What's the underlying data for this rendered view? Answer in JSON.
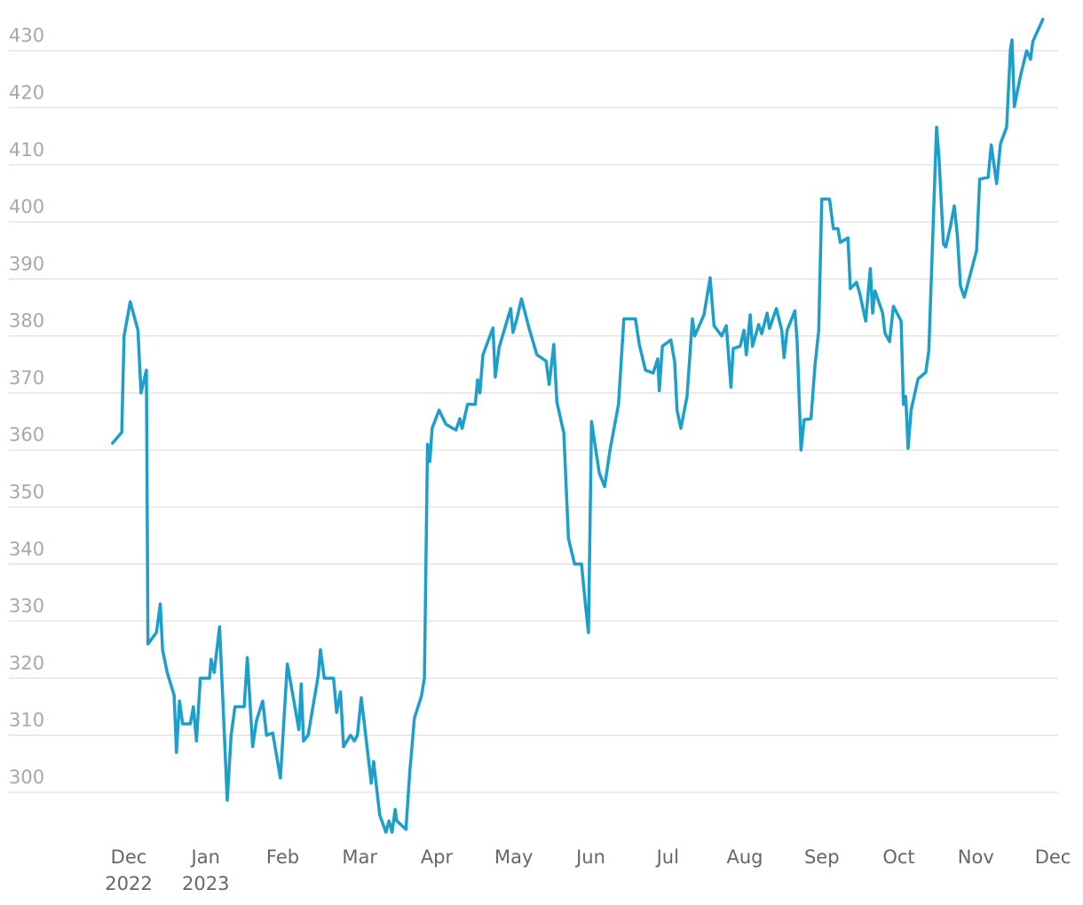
{
  "chart_data": {
    "type": "line",
    "color": "#1ca0cb",
    "grid": true,
    "xlim": [
      -0.5,
      12.1
    ],
    "ylim": [
      292.5,
      436
    ],
    "yticks": [
      300,
      310,
      320,
      330,
      340,
      350,
      360,
      370,
      380,
      390,
      400,
      410,
      420,
      430
    ],
    "xticks": [
      {
        "value": 0,
        "label": "Dec\n2022"
      },
      {
        "value": 1,
        "label": "Jan\n2023"
      },
      {
        "value": 2,
        "label": "Feb"
      },
      {
        "value": 3,
        "label": "Mar"
      },
      {
        "value": 4,
        "label": "Apr"
      },
      {
        "value": 5,
        "label": "May"
      },
      {
        "value": 6,
        "label": "Jun"
      },
      {
        "value": 7,
        "label": "Jul"
      },
      {
        "value": 8,
        "label": "Aug"
      },
      {
        "value": 9,
        "label": "Sep"
      },
      {
        "value": 10,
        "label": "Oct"
      },
      {
        "value": 11,
        "label": "Nov"
      },
      {
        "value": 12,
        "label": "Dec"
      }
    ],
    "x": [
      -0.21,
      -0.09,
      -0.06,
      0.02,
      0.12,
      0.16,
      0.23,
      0.25,
      0.36,
      0.41,
      0.44,
      0.5,
      0.59,
      0.62,
      0.66,
      0.7,
      0.8,
      0.84,
      0.88,
      0.93,
      1.05,
      1.07,
      1.11,
      1.18,
      1.28,
      1.33,
      1.38,
      1.5,
      1.54,
      1.61,
      1.66,
      1.74,
      1.79,
      1.87,
      1.97,
      2.06,
      2.21,
      2.24,
      2.27,
      2.33,
      2.46,
      2.49,
      2.54,
      2.66,
      2.7,
      2.75,
      2.79,
      2.88,
      2.93,
      2.97,
      3.02,
      3.15,
      3.18,
      3.26,
      3.34,
      3.38,
      3.42,
      3.46,
      3.48,
      3.6,
      3.65,
      3.71,
      3.8,
      3.84,
      3.88,
      3.91,
      3.94,
      4.03,
      4.12,
      4.25,
      4.3,
      4.33,
      4.4,
      4.5,
      4.53,
      4.56,
      4.6,
      4.73,
      4.76,
      4.81,
      4.96,
      4.99,
      5.04,
      5.1,
      5.2,
      5.3,
      5.42,
      5.46,
      5.52,
      5.56,
      5.65,
      5.71,
      5.79,
      5.88,
      5.93,
      5.97,
      6.01,
      6.11,
      6.18,
      6.25,
      6.36,
      6.43,
      6.58,
      6.63,
      6.71,
      6.81,
      6.87,
      6.89,
      6.93,
      7.04,
      7.09,
      7.12,
      7.17,
      7.25,
      7.32,
      7.35,
      7.47,
      7.55,
      7.6,
      7.7,
      7.76,
      7.82,
      7.85,
      7.94,
      7.99,
      8.02,
      8.07,
      8.1,
      8.18,
      8.22,
      8.29,
      8.32,
      8.41,
      8.48,
      8.51,
      8.55,
      8.65,
      8.68,
      8.73,
      8.77,
      8.86,
      8.91,
      8.96,
      9.0,
      9.1,
      9.15,
      9.21,
      9.24,
      9.34,
      9.37,
      9.45,
      9.49,
      9.57,
      9.63,
      9.66,
      9.69,
      9.79,
      9.82,
      9.88,
      9.93,
      10.03,
      10.06,
      10.09,
      10.12,
      10.16,
      10.25,
      10.35,
      10.39,
      10.49,
      10.52,
      10.58,
      10.61,
      10.67,
      10.72,
      10.76,
      10.8,
      10.85,
      11.01,
      11.05,
      11.16,
      11.2,
      11.27,
      11.32,
      11.4,
      11.45,
      11.47,
      11.5,
      11.58,
      11.66,
      11.71,
      11.74,
      11.87
    ],
    "values": [
      361.2,
      363.1,
      380,
      386,
      381,
      370,
      374,
      326,
      328,
      333,
      325,
      321,
      317,
      307,
      316,
      312,
      312,
      315,
      309,
      320,
      320,
      323.3,
      321,
      329,
      298.6,
      310,
      315,
      315,
      323.6,
      308,
      312.6,
      316,
      310,
      310.4,
      302.5,
      322.5,
      311,
      319,
      309,
      310,
      320.4,
      325,
      320,
      320,
      314,
      317.6,
      308,
      310,
      309,
      310,
      316.6,
      301.6,
      305.4,
      296,
      293,
      295,
      293,
      297,
      295,
      293.5,
      303.6,
      313,
      316.8,
      320,
      361,
      358,
      363.8,
      367,
      364.5,
      363.5,
      365.5,
      363.8,
      368,
      368,
      372.3,
      370,
      376.7,
      381.4,
      372.8,
      378,
      384.8,
      380.6,
      383,
      386.5,
      381.3,
      376.7,
      375.6,
      371.5,
      378.5,
      368.4,
      363,
      344.5,
      340,
      340,
      333,
      328,
      365,
      356,
      353.6,
      360,
      368,
      383,
      383,
      378.5,
      374,
      373.5,
      376,
      370.4,
      378.2,
      379.3,
      375.4,
      367,
      363.8,
      369.4,
      383,
      380,
      383.7,
      390.2,
      381.8,
      380,
      381.8,
      371,
      377.8,
      378.2,
      381,
      376.7,
      383.7,
      378.2,
      382,
      380.4,
      384,
      381.3,
      384.8,
      381,
      376.2,
      381,
      384.4,
      379,
      360,
      365.3,
      365.5,
      374.6,
      381,
      404,
      404,
      398.8,
      398.8,
      396.4,
      397.2,
      388.3,
      389.4,
      387.6,
      382.6,
      391.8,
      384,
      387.9,
      384,
      380.5,
      379,
      385.2,
      382.6,
      368,
      369.4,
      360.3,
      367,
      372.5,
      373.6,
      377.5,
      416.6,
      411.7,
      396.1,
      395.6,
      399.2,
      402.8,
      397.7,
      388.8,
      386.8,
      395,
      407.5,
      407.8,
      413.5,
      406.7,
      413.7,
      416.6,
      430.3,
      431.9,
      420.2,
      425.6,
      430,
      428.5,
      431.6,
      435.5
    ]
  }
}
